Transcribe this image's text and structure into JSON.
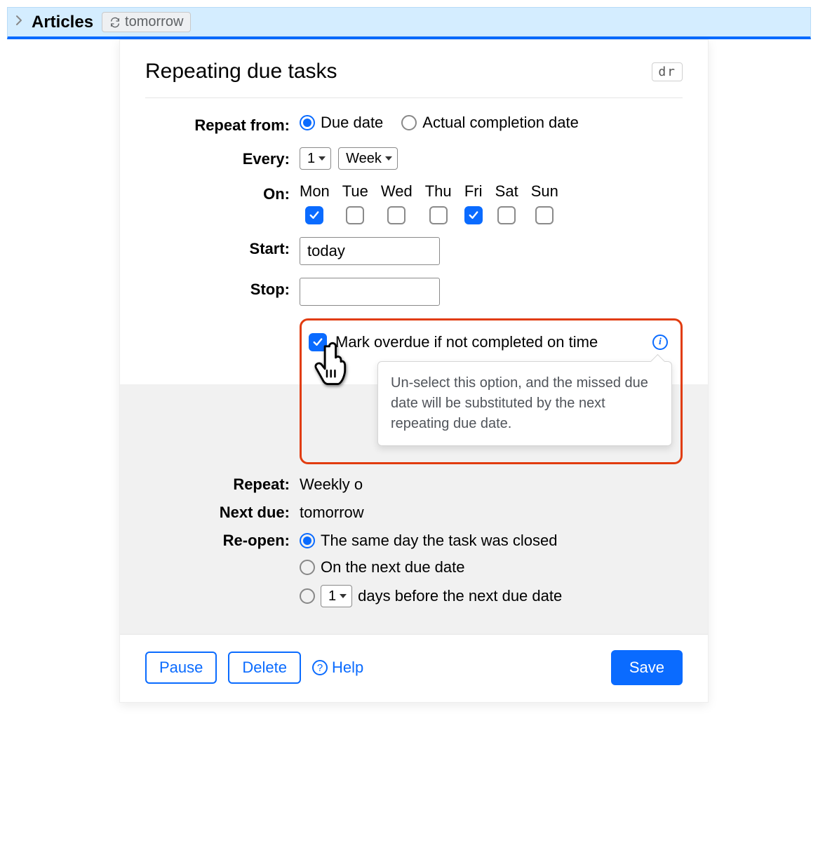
{
  "header": {
    "title": "Articles",
    "pill_label": "tomorrow"
  },
  "panel": {
    "title": "Repeating due tasks",
    "shortcut": "dr"
  },
  "form": {
    "repeat_from": {
      "label": "Repeat from:",
      "options": [
        {
          "label": "Due date",
          "checked": true
        },
        {
          "label": "Actual completion date",
          "checked": false
        }
      ]
    },
    "every": {
      "label": "Every:",
      "count": "1",
      "unit": "Week"
    },
    "on": {
      "label": "On:",
      "days": [
        {
          "label": "Mon",
          "checked": true
        },
        {
          "label": "Tue",
          "checked": false
        },
        {
          "label": "Wed",
          "checked": false
        },
        {
          "label": "Thu",
          "checked": false
        },
        {
          "label": "Fri",
          "checked": true
        },
        {
          "label": "Sat",
          "checked": false
        },
        {
          "label": "Sun",
          "checked": false
        }
      ]
    },
    "start": {
      "label": "Start:",
      "value": "today"
    },
    "stop": {
      "label": "Stop:",
      "value": ""
    },
    "overdue": {
      "checked": true,
      "label": "Mark overdue if not completed on time",
      "tooltip": "Un-select this option, and the missed due date will be substituted by the next repeating due date."
    }
  },
  "summary": {
    "repeat": {
      "label": "Repeat:",
      "value": "Weekly o"
    },
    "next_due": {
      "label": "Next due:",
      "value": "tomorrow"
    },
    "reopen": {
      "label": "Re-open:",
      "options": [
        {
          "label": "The same day the task was closed",
          "checked": true,
          "type": "plain"
        },
        {
          "label": "On the next due date",
          "checked": false,
          "type": "plain"
        },
        {
          "label_before": "",
          "select_value": "1",
          "label_after": "days before the next due date",
          "checked": false,
          "type": "select"
        }
      ]
    }
  },
  "footer": {
    "pause": "Pause",
    "delete": "Delete",
    "help": "Help",
    "save": "Save"
  },
  "colors": {
    "accent": "#0a6bff",
    "highlight_border": "#e13c0f",
    "header_bg": "#d4edff",
    "summary_bg": "#f1f1f1"
  }
}
